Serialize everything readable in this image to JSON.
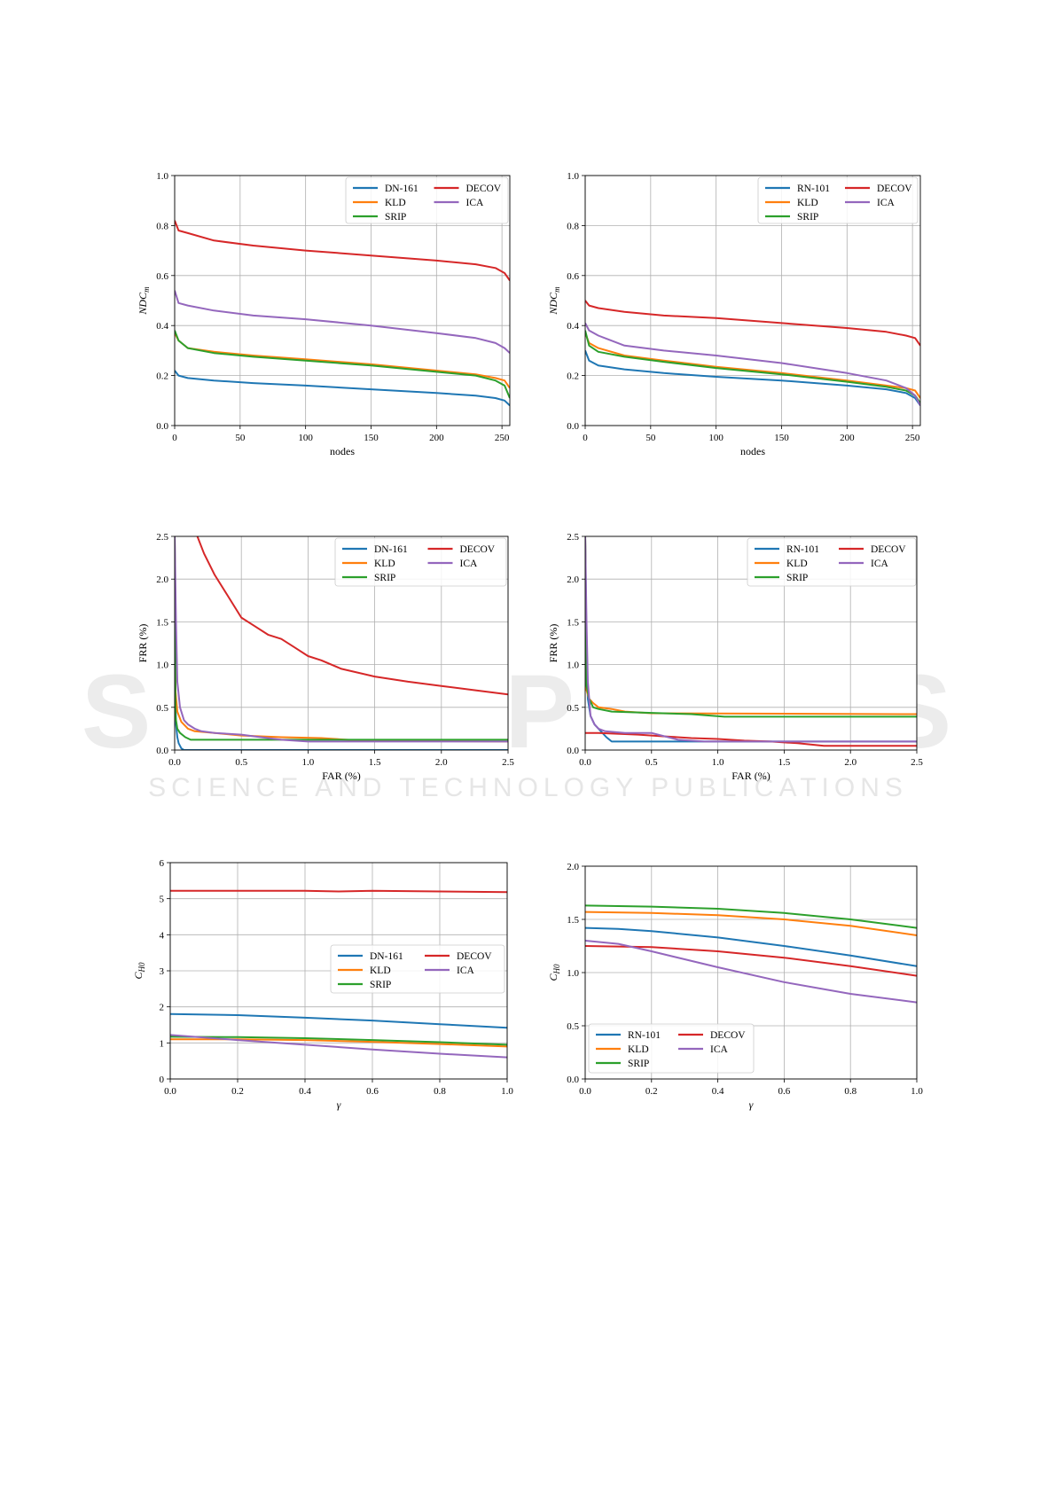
{
  "colors": {
    "blue": "#1f77b4",
    "orange": "#ff7f0e",
    "green": "#2ca02c",
    "red": "#d62728",
    "purple": "#9467bd",
    "grid": "#b0b0b0"
  },
  "watermark": {
    "main": "SCITEPRESS",
    "sub": "SCIENCE AND TECHNOLOGY PUBLICATIONS"
  },
  "chart_data": [
    {
      "type": "line",
      "xlabel": "nodes",
      "ylabel": "NDC_m",
      "xlim": [
        0,
        256
      ],
      "ylim": [
        0,
        1.0
      ],
      "xticks": [
        "0",
        "50",
        "100",
        "150",
        "200",
        "250"
      ],
      "yticks": [
        "0.0",
        "0.2",
        "0.4",
        "0.6",
        "0.8",
        "1.0"
      ],
      "grid": true,
      "legend": "top-right",
      "series": [
        {
          "name": "DN-161",
          "color": "blue",
          "x": [
            0,
            3,
            10,
            30,
            60,
            100,
            150,
            200,
            230,
            245,
            252,
            256
          ],
          "y": [
            0.22,
            0.2,
            0.19,
            0.18,
            0.17,
            0.16,
            0.145,
            0.13,
            0.12,
            0.11,
            0.1,
            0.08
          ]
        },
        {
          "name": "KLD",
          "color": "orange",
          "x": [
            0,
            3,
            10,
            30,
            60,
            100,
            150,
            200,
            230,
            245,
            252,
            256
          ],
          "y": [
            0.37,
            0.34,
            0.31,
            0.295,
            0.28,
            0.265,
            0.245,
            0.22,
            0.205,
            0.19,
            0.18,
            0.15
          ]
        },
        {
          "name": "SRIP",
          "color": "green",
          "x": [
            0,
            3,
            10,
            30,
            60,
            100,
            150,
            200,
            230,
            245,
            252,
            256
          ],
          "y": [
            0.38,
            0.34,
            0.31,
            0.29,
            0.275,
            0.26,
            0.24,
            0.215,
            0.2,
            0.18,
            0.16,
            0.11
          ]
        },
        {
          "name": "DECOV",
          "color": "red",
          "x": [
            0,
            3,
            10,
            30,
            60,
            100,
            150,
            200,
            230,
            245,
            252,
            256
          ],
          "y": [
            0.82,
            0.78,
            0.77,
            0.74,
            0.72,
            0.7,
            0.68,
            0.66,
            0.645,
            0.63,
            0.61,
            0.58
          ]
        },
        {
          "name": "ICA",
          "color": "purple",
          "x": [
            0,
            3,
            10,
            30,
            60,
            100,
            150,
            200,
            230,
            245,
            252,
            256
          ],
          "y": [
            0.54,
            0.49,
            0.48,
            0.46,
            0.44,
            0.425,
            0.4,
            0.37,
            0.35,
            0.33,
            0.31,
            0.29
          ]
        }
      ]
    },
    {
      "type": "line",
      "xlabel": "nodes",
      "ylabel": "NDC_m",
      "xlim": [
        0,
        256
      ],
      "ylim": [
        0,
        1.0
      ],
      "xticks": [
        "0",
        "50",
        "100",
        "150",
        "200",
        "250"
      ],
      "yticks": [
        "0.0",
        "0.2",
        "0.4",
        "0.6",
        "0.8",
        "1.0"
      ],
      "grid": true,
      "legend": "top-right",
      "series": [
        {
          "name": "RN-101",
          "color": "blue",
          "x": [
            0,
            3,
            10,
            30,
            60,
            100,
            150,
            200,
            230,
            245,
            252,
            256
          ],
          "y": [
            0.3,
            0.26,
            0.24,
            0.225,
            0.21,
            0.195,
            0.18,
            0.16,
            0.145,
            0.13,
            0.11,
            0.08
          ]
        },
        {
          "name": "KLD",
          "color": "orange",
          "x": [
            0,
            3,
            10,
            30,
            60,
            100,
            150,
            200,
            230,
            245,
            252,
            256
          ],
          "y": [
            0.37,
            0.33,
            0.31,
            0.28,
            0.26,
            0.235,
            0.21,
            0.18,
            0.16,
            0.15,
            0.14,
            0.11
          ]
        },
        {
          "name": "SRIP",
          "color": "green",
          "x": [
            0,
            3,
            10,
            30,
            60,
            100,
            150,
            200,
            230,
            245,
            252,
            256
          ],
          "y": [
            0.38,
            0.32,
            0.295,
            0.275,
            0.255,
            0.23,
            0.205,
            0.175,
            0.155,
            0.14,
            0.12,
            0.09
          ]
        },
        {
          "name": "DECOV",
          "color": "red",
          "x": [
            0,
            3,
            10,
            30,
            60,
            100,
            150,
            200,
            230,
            245,
            252,
            256
          ],
          "y": [
            0.5,
            0.48,
            0.47,
            0.455,
            0.44,
            0.43,
            0.41,
            0.39,
            0.375,
            0.36,
            0.35,
            0.32
          ]
        },
        {
          "name": "ICA",
          "color": "purple",
          "x": [
            0,
            3,
            10,
            30,
            60,
            100,
            150,
            200,
            230,
            245,
            252,
            256
          ],
          "y": [
            0.41,
            0.38,
            0.36,
            0.32,
            0.3,
            0.28,
            0.25,
            0.21,
            0.18,
            0.15,
            0.12,
            0.08
          ]
        }
      ]
    },
    {
      "type": "line",
      "xlabel": "FAR (%)",
      "ylabel": "FRR (%)",
      "xlim": [
        0,
        2.5
      ],
      "ylim": [
        0,
        2.5
      ],
      "xticks": [
        "0.0",
        "0.5",
        "1.0",
        "1.5",
        "2.0",
        "2.5"
      ],
      "yticks": [
        "0.0",
        "0.5",
        "1.0",
        "1.5",
        "2.0",
        "2.5"
      ],
      "grid": true,
      "legend": "top-right",
      "series": [
        {
          "name": "DN-161",
          "color": "blue",
          "x": [
            0,
            0.005,
            0.01,
            0.02,
            0.03,
            0.05,
            0.07,
            2.5
          ],
          "y": [
            2.5,
            0.8,
            0.3,
            0.15,
            0.08,
            0.02,
            0,
            0
          ]
        },
        {
          "name": "KLD",
          "color": "orange",
          "x": [
            0,
            0.005,
            0.02,
            0.05,
            0.1,
            0.15,
            0.3,
            0.5,
            0.8,
            1.1,
            1.4,
            2.5
          ],
          "y": [
            2.5,
            0.7,
            0.45,
            0.33,
            0.25,
            0.22,
            0.2,
            0.17,
            0.15,
            0.14,
            0.11,
            0.1
          ]
        },
        {
          "name": "SRIP",
          "color": "green",
          "x": [
            0,
            0.005,
            0.02,
            0.04,
            0.08,
            0.12,
            2.5
          ],
          "y": [
            2.5,
            0.4,
            0.25,
            0.2,
            0.15,
            0.12,
            0.12
          ]
        },
        {
          "name": "DECOV",
          "color": "red",
          "x": [
            0.17,
            0.22,
            0.3,
            0.4,
            0.5,
            0.6,
            0.7,
            0.8,
            0.9,
            1.0,
            1.1,
            1.25,
            1.5,
            1.75,
            2.0,
            2.25,
            2.5
          ],
          "y": [
            2.5,
            2.3,
            2.05,
            1.8,
            1.55,
            1.45,
            1.35,
            1.3,
            1.2,
            1.1,
            1.05,
            0.95,
            0.86,
            0.8,
            0.75,
            0.7,
            0.65
          ]
        },
        {
          "name": "ICA",
          "color": "purple",
          "x": [
            0,
            0.01,
            0.02,
            0.04,
            0.07,
            0.1,
            0.15,
            0.2,
            0.3,
            0.5,
            0.6,
            0.8,
            1.0,
            2.5
          ],
          "y": [
            2.5,
            1.5,
            0.8,
            0.5,
            0.35,
            0.3,
            0.25,
            0.22,
            0.2,
            0.18,
            0.16,
            0.12,
            0.1,
            0.1
          ]
        }
      ]
    },
    {
      "type": "line",
      "xlabel": "FAR (%)",
      "ylabel": "FRR (%)",
      "xlim": [
        0,
        2.5
      ],
      "ylim": [
        0,
        2.5
      ],
      "xticks": [
        "0.0",
        "0.5",
        "1.0",
        "1.5",
        "2.0",
        "2.5"
      ],
      "yticks": [
        "0.0",
        "0.5",
        "1.0",
        "1.5",
        "2.0",
        "2.5"
      ],
      "grid": true,
      "legend": "top-right",
      "series": [
        {
          "name": "RN-101",
          "color": "blue",
          "x": [
            0,
            0.01,
            0.02,
            0.04,
            0.07,
            0.1,
            0.13,
            0.16,
            0.2,
            2.5
          ],
          "y": [
            2.5,
            1.2,
            0.6,
            0.4,
            0.3,
            0.25,
            0.2,
            0.15,
            0.1,
            0.1
          ]
        },
        {
          "name": "KLD",
          "color": "orange",
          "x": [
            0,
            0.01,
            0.03,
            0.06,
            0.1,
            0.2,
            0.3,
            0.5,
            2.5
          ],
          "y": [
            2.5,
            0.7,
            0.6,
            0.55,
            0.5,
            0.48,
            0.45,
            0.43,
            0.42
          ]
        },
        {
          "name": "SRIP",
          "color": "green",
          "x": [
            0,
            0.01,
            0.03,
            0.06,
            0.1,
            0.2,
            0.4,
            0.8,
            1.05,
            2.5
          ],
          "y": [
            2.5,
            0.75,
            0.6,
            0.5,
            0.48,
            0.45,
            0.44,
            0.42,
            0.39,
            0.39
          ]
        },
        {
          "name": "DECOV",
          "color": "red",
          "x": [
            0,
            0.1,
            0.4,
            0.6,
            0.8,
            1.0,
            1.2,
            1.4,
            1.6,
            1.8,
            2.0,
            2.5
          ],
          "y": [
            0.2,
            0.2,
            0.18,
            0.16,
            0.14,
            0.13,
            0.11,
            0.1,
            0.08,
            0.05,
            0.05,
            0.05
          ]
        },
        {
          "name": "ICA",
          "color": "purple",
          "x": [
            0,
            0.01,
            0.02,
            0.04,
            0.07,
            0.1,
            0.15,
            0.3,
            0.5,
            0.7,
            0.9,
            2.5
          ],
          "y": [
            2.5,
            1.5,
            0.8,
            0.4,
            0.3,
            0.25,
            0.22,
            0.2,
            0.2,
            0.12,
            0.1,
            0.1
          ]
        }
      ]
    },
    {
      "type": "line",
      "xlabel": "γ",
      "ylabel": "C_H0",
      "xlim": [
        0,
        1.0
      ],
      "ylim": [
        0,
        6
      ],
      "xticks": [
        "0.0",
        "0.2",
        "0.4",
        "0.6",
        "0.8",
        "1.0"
      ],
      "yticks": [
        "0",
        "1",
        "2",
        "3",
        "4",
        "5",
        "6"
      ],
      "grid": true,
      "legend": "center-right",
      "series": [
        {
          "name": "DN-161",
          "color": "blue",
          "x": [
            0,
            0.2,
            0.4,
            0.6,
            0.8,
            1.0
          ],
          "y": [
            1.8,
            1.77,
            1.7,
            1.62,
            1.52,
            1.42
          ]
        },
        {
          "name": "KLD",
          "color": "orange",
          "x": [
            0,
            0.2,
            0.4,
            0.6,
            0.8,
            1.0
          ],
          "y": [
            1.1,
            1.1,
            1.08,
            1.03,
            0.97,
            0.9
          ]
        },
        {
          "name": "SRIP",
          "color": "green",
          "x": [
            0,
            0.2,
            0.4,
            0.6,
            0.8,
            1.0
          ],
          "y": [
            1.17,
            1.16,
            1.13,
            1.08,
            1.02,
            0.95
          ]
        },
        {
          "name": "DECOV",
          "color": "red",
          "x": [
            0,
            0.2,
            0.4,
            0.5,
            0.6,
            0.8,
            1.0
          ],
          "y": [
            5.22,
            5.22,
            5.22,
            5.2,
            5.22,
            5.2,
            5.18
          ]
        },
        {
          "name": "ICA",
          "color": "purple",
          "x": [
            0,
            0.2,
            0.4,
            0.6,
            0.8,
            1.0
          ],
          "y": [
            1.22,
            1.08,
            0.95,
            0.82,
            0.7,
            0.6
          ]
        }
      ]
    },
    {
      "type": "line",
      "xlabel": "γ",
      "ylabel": "C_H0",
      "xlim": [
        0,
        1.0
      ],
      "ylim": [
        0,
        2.0
      ],
      "xticks": [
        "0.0",
        "0.2",
        "0.4",
        "0.6",
        "0.8",
        "1.0"
      ],
      "yticks": [
        "0.0",
        "0.5",
        "1.0",
        "1.5",
        "2.0"
      ],
      "grid": true,
      "legend": "bottom-left",
      "series": [
        {
          "name": "RN-101",
          "color": "blue",
          "x": [
            0,
            0.1,
            0.2,
            0.4,
            0.6,
            0.8,
            1.0
          ],
          "y": [
            1.42,
            1.41,
            1.39,
            1.33,
            1.25,
            1.16,
            1.06
          ]
        },
        {
          "name": "KLD",
          "color": "orange",
          "x": [
            0,
            0.2,
            0.4,
            0.6,
            0.8,
            1.0
          ],
          "y": [
            1.57,
            1.56,
            1.54,
            1.5,
            1.44,
            1.35
          ]
        },
        {
          "name": "SRIP",
          "color": "green",
          "x": [
            0,
            0.2,
            0.4,
            0.6,
            0.8,
            1.0
          ],
          "y": [
            1.63,
            1.62,
            1.6,
            1.56,
            1.5,
            1.42
          ]
        },
        {
          "name": "DECOV",
          "color": "red",
          "x": [
            0,
            0.2,
            0.4,
            0.6,
            0.8,
            1.0
          ],
          "y": [
            1.25,
            1.24,
            1.2,
            1.14,
            1.06,
            0.97
          ]
        },
        {
          "name": "ICA",
          "color": "purple",
          "x": [
            0,
            0.1,
            0.2,
            0.4,
            0.6,
            0.8,
            1.0
          ],
          "y": [
            1.3,
            1.27,
            1.2,
            1.05,
            0.91,
            0.8,
            0.72
          ]
        }
      ]
    }
  ]
}
